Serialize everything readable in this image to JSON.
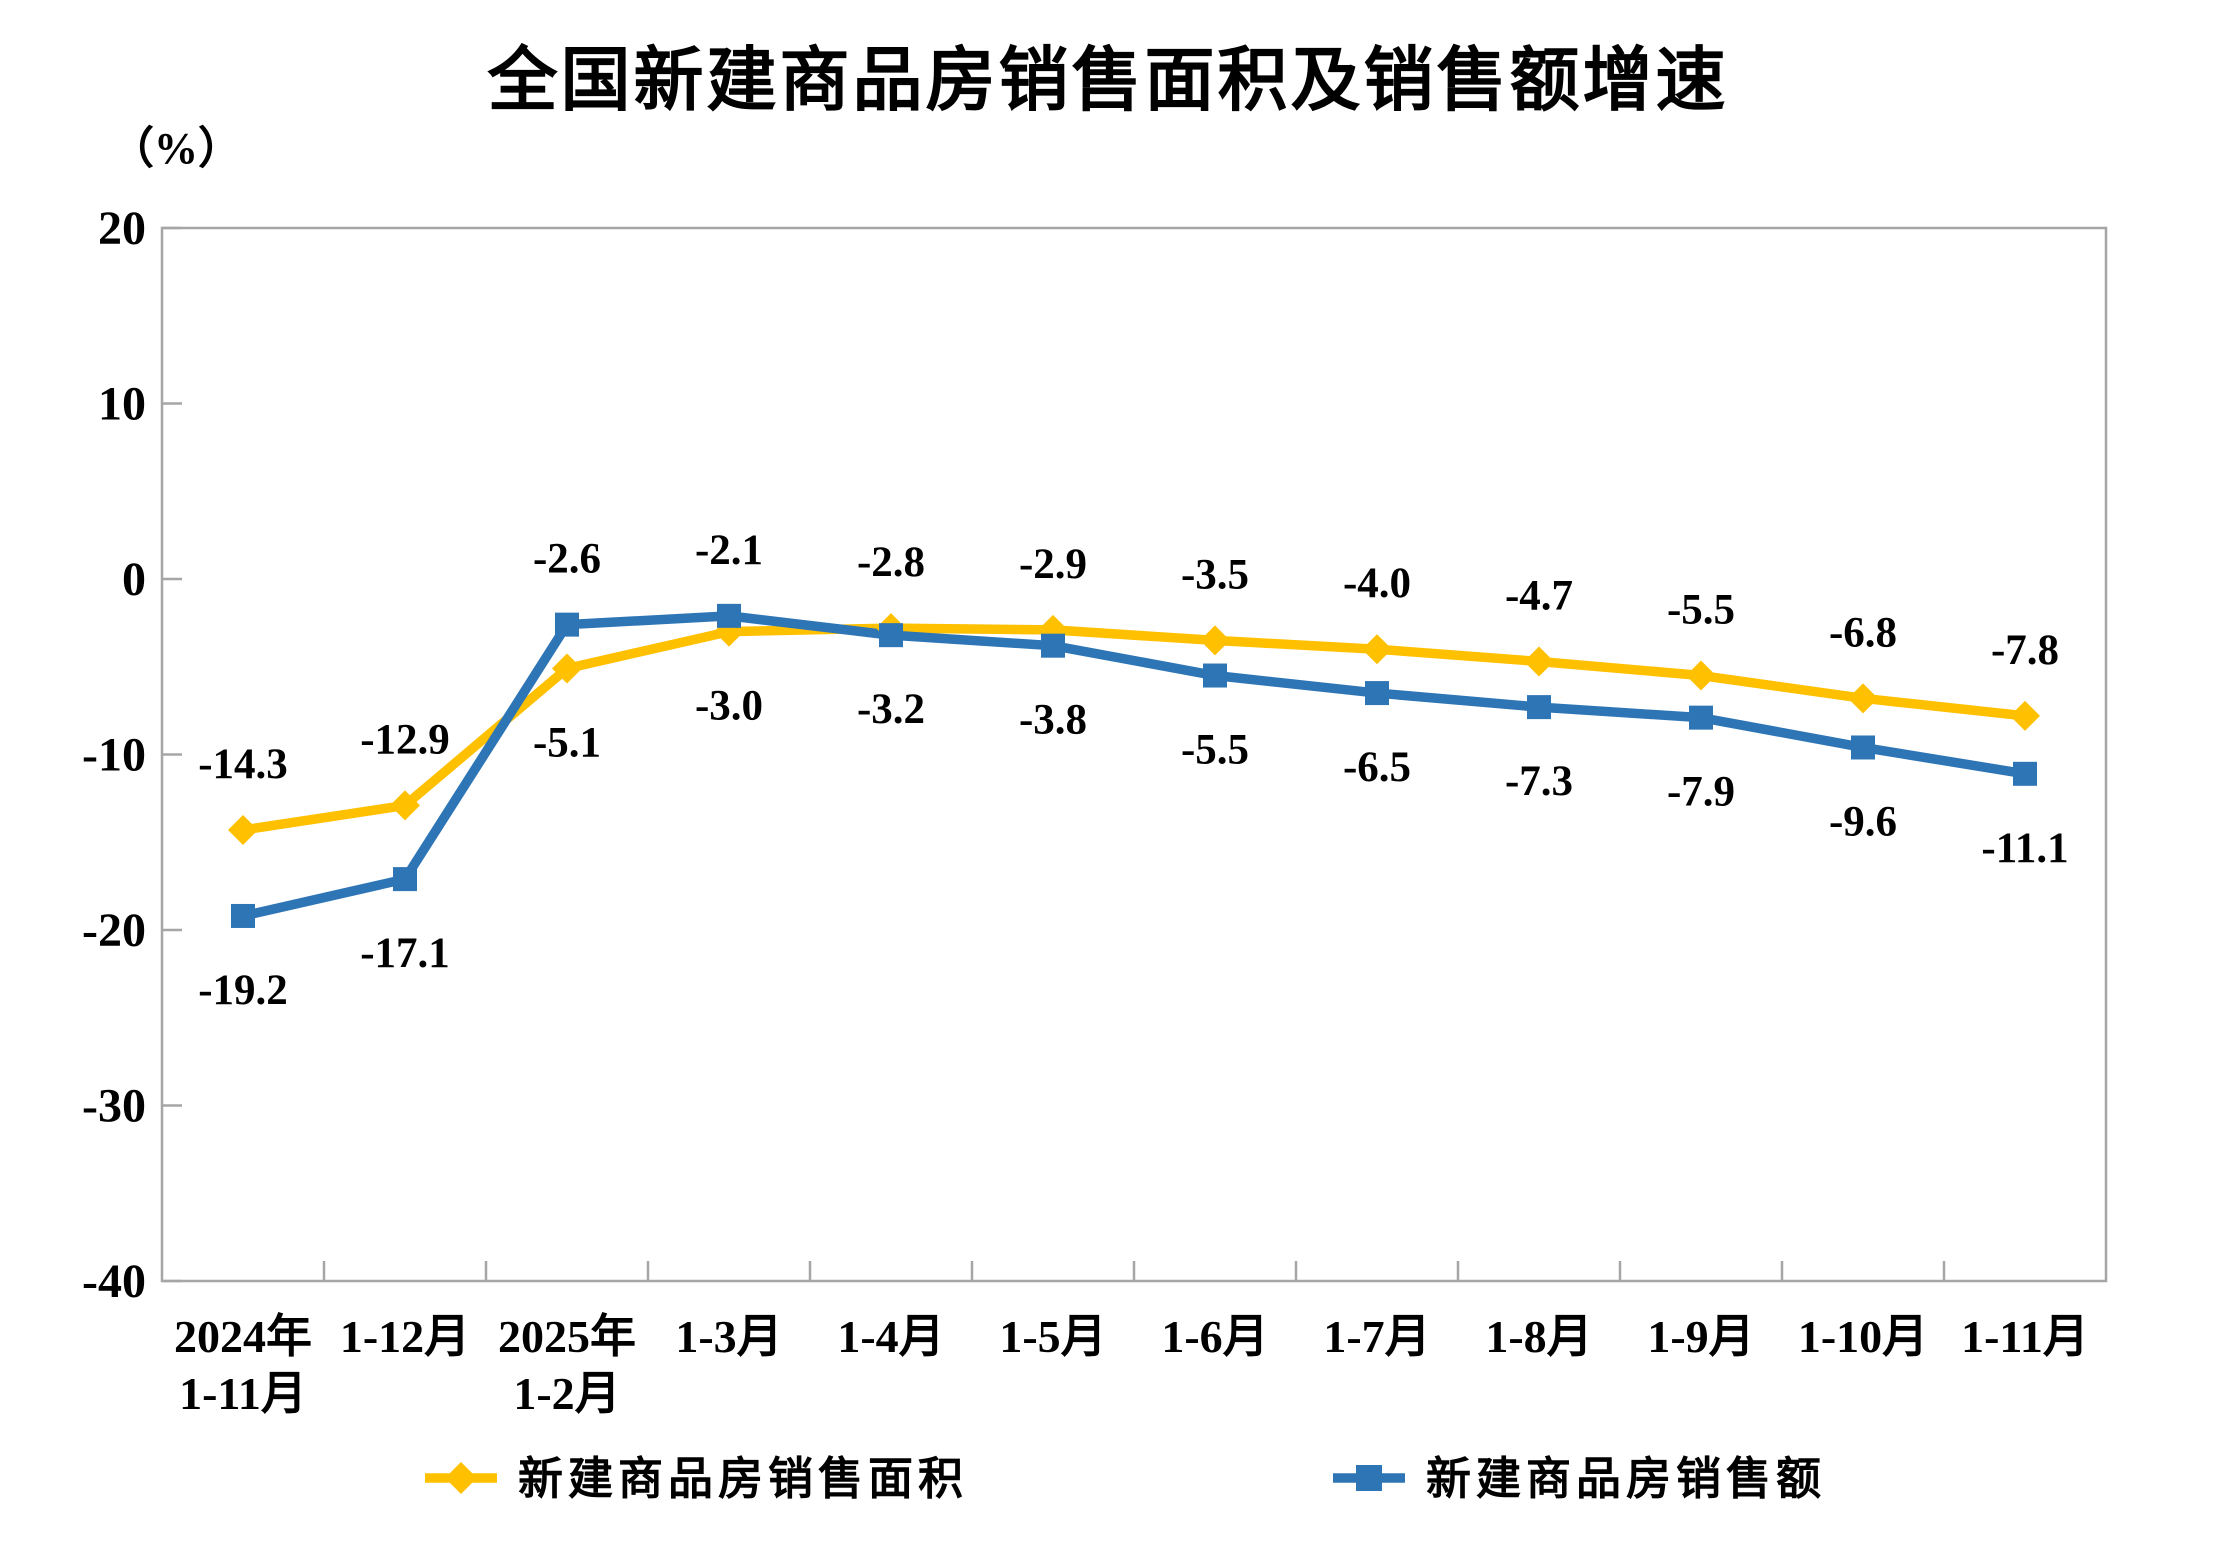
{
  "page": {
    "background": "#FFFFFF"
  },
  "chart_data": {
    "type": "line",
    "title": "全国新建商品房销售面积及销售额增速",
    "unit_label": "（%）",
    "categories": [
      [
        "2024年",
        "1-11月"
      ],
      [
        "1-12月"
      ],
      [
        "2025年",
        "1-2月"
      ],
      [
        "1-3月"
      ],
      [
        "1-4月"
      ],
      [
        "1-5月"
      ],
      [
        "1-6月"
      ],
      [
        "1-7月"
      ],
      [
        "1-8月"
      ],
      [
        "1-9月"
      ],
      [
        "1-10月"
      ],
      [
        "1-11月"
      ]
    ],
    "y_axis": {
      "min": -40,
      "max": 20,
      "step": 10,
      "tick_labels": [
        "20",
        "10",
        "0",
        "-10",
        "-20",
        "-30",
        "-40"
      ]
    },
    "grid": false,
    "legend_position": "bottom",
    "axis_color": "#A6A6A6",
    "text_color": "#000000",
    "series": [
      {
        "name": "新建商品房销售面积",
        "color": "#FFC000",
        "marker": "diamond",
        "values": [
          -14.3,
          -12.9,
          -5.1,
          -3.0,
          -2.8,
          -2.9,
          -3.5,
          -4.0,
          -4.7,
          -5.5,
          -6.8,
          -7.8
        ],
        "labels": [
          "-14.3",
          "-12.9",
          "-5.1",
          "-3.0",
          "-2.8",
          "-2.9",
          "-3.5",
          "-4.0",
          "-4.7",
          "-5.5",
          "-6.8",
          "-7.8"
        ],
        "label_above": [
          true,
          true,
          false,
          false,
          true,
          true,
          true,
          true,
          true,
          true,
          true,
          true
        ]
      },
      {
        "name": "新建商品房销售额",
        "color": "#2E75B6",
        "marker": "square",
        "values": [
          -19.2,
          -17.1,
          -2.6,
          -2.1,
          -3.2,
          -3.8,
          -5.5,
          -6.5,
          -7.3,
          -7.9,
          -9.6,
          -11.1
        ],
        "labels": [
          "-19.2",
          "-17.1",
          "-2.6",
          "-2.1",
          "-3.2",
          "-3.8",
          "-5.5",
          "-6.5",
          "-7.3",
          "-7.9",
          "-9.6",
          "-11.1"
        ],
        "label_above": [
          false,
          false,
          true,
          true,
          false,
          false,
          false,
          false,
          false,
          false,
          false,
          false
        ]
      }
    ]
  }
}
